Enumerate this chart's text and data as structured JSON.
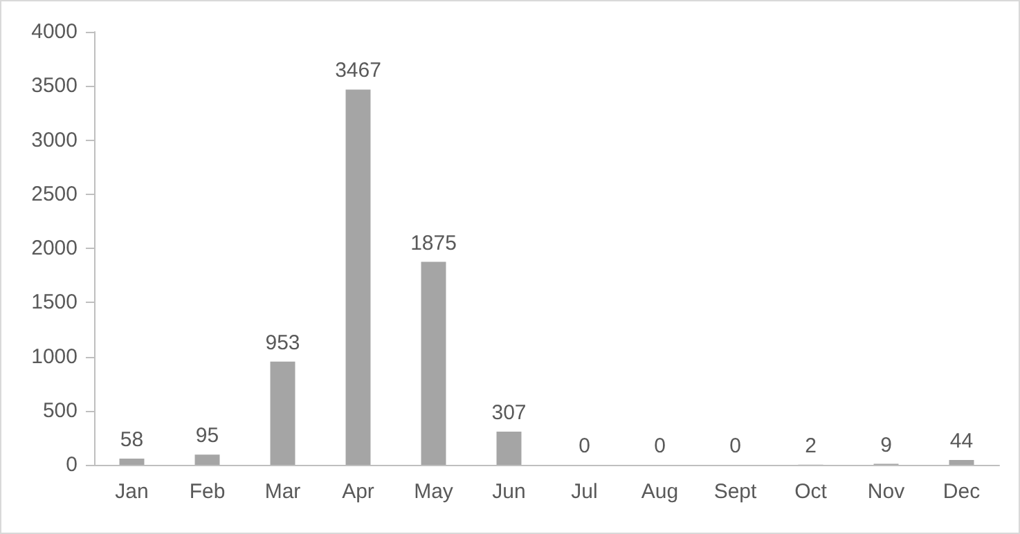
{
  "chart_data": {
    "type": "bar",
    "categories": [
      "Jan",
      "Feb",
      "Mar",
      "Apr",
      "May",
      "Jun",
      "Jul",
      "Aug",
      "Sept",
      "Oct",
      "Nov",
      "Dec"
    ],
    "values": [
      58,
      95,
      953,
      3467,
      1875,
      307,
      0,
      0,
      0,
      2,
      9,
      44
    ],
    "color": "#a5a5a5",
    "ylim": [
      0,
      4000
    ],
    "yticks": [
      0,
      500,
      1000,
      1500,
      2000,
      2500,
      3000,
      3500,
      4000
    ],
    "grid": false,
    "data_labels": true
  }
}
